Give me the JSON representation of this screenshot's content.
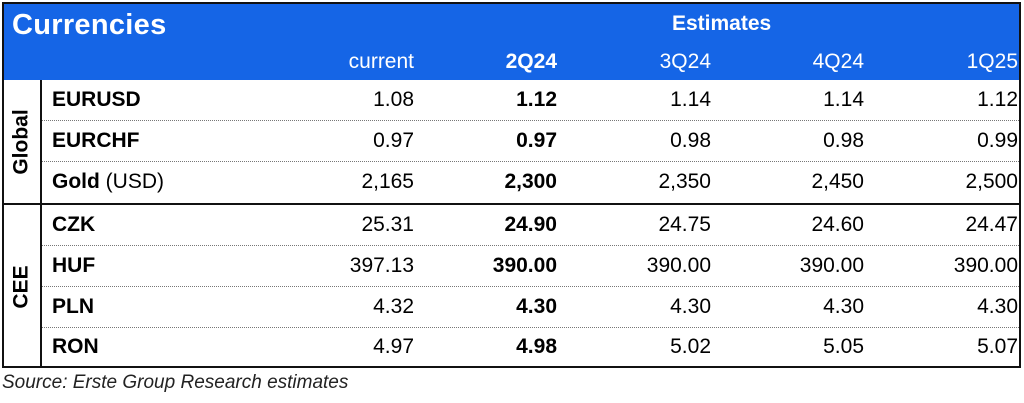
{
  "title": "Currencies",
  "estimates_label": "Estimates",
  "columns": [
    "current",
    "2Q24",
    "3Q24",
    "4Q24",
    "1Q25"
  ],
  "groups": [
    {
      "name": "Global",
      "rows": [
        {
          "label": "EURUSD",
          "unit": "",
          "values": [
            "1.08",
            "1.12",
            "1.14",
            "1.14",
            "1.12"
          ]
        },
        {
          "label": "EURCHF",
          "unit": "",
          "values": [
            "0.97",
            "0.97",
            "0.98",
            "0.98",
            "0.99"
          ]
        },
        {
          "label": "Gold",
          "unit": " (USD)",
          "values": [
            "2,165",
            "2,300",
            "2,350",
            "2,450",
            "2,500"
          ]
        }
      ]
    },
    {
      "name": "CEE",
      "rows": [
        {
          "label": "CZK",
          "unit": "",
          "values": [
            "25.31",
            "24.90",
            "24.75",
            "24.60",
            "24.47"
          ]
        },
        {
          "label": "HUF",
          "unit": "",
          "values": [
            "397.13",
            "390.00",
            "390.00",
            "390.00",
            "390.00"
          ]
        },
        {
          "label": "PLN",
          "unit": "",
          "values": [
            "4.32",
            "4.30",
            "4.30",
            "4.30",
            "4.30"
          ]
        },
        {
          "label": "RON",
          "unit": "",
          "values": [
            "4.97",
            "4.98",
            "5.02",
            "5.05",
            "5.07"
          ]
        }
      ]
    }
  ],
  "source": "Source: Erste Group Research estimates",
  "colors": {
    "header_bg": "#1565e6",
    "header_text": "#ffffff"
  }
}
